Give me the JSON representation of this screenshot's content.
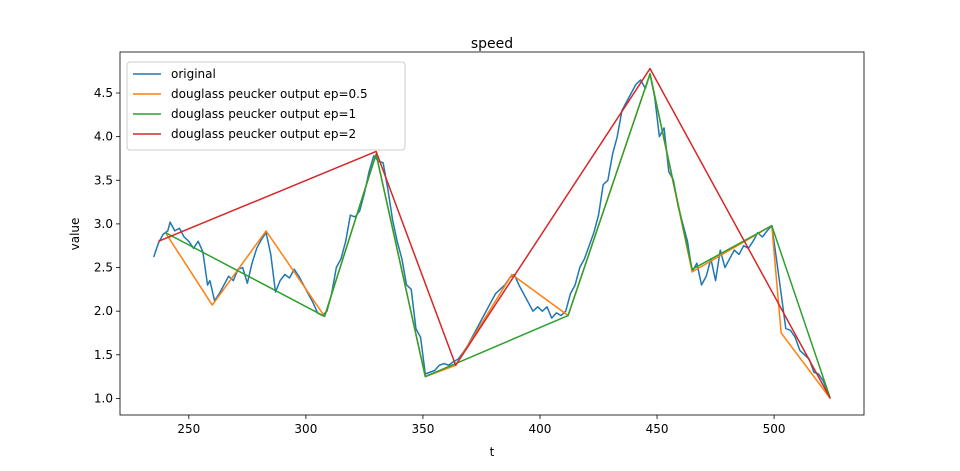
{
  "chart_data": {
    "type": "line",
    "title": "speed",
    "x_label": "t",
    "y_label": "value",
    "xlim": [
      220.6,
      538.4
    ],
    "ylim": [
      0.81,
      4.97
    ],
    "xticks": [
      250,
      300,
      350,
      400,
      450,
      500
    ],
    "yticks": [
      {
        "value": 1.0,
        "label": "1.0"
      },
      1.5,
      {
        "value": 2.0,
        "label": "2.0"
      },
      2.5,
      {
        "value": 3.0,
        "label": "3.0"
      },
      3.5,
      {
        "value": 4.0,
        "label": "4.0"
      },
      4.5
    ],
    "legend": "upper left",
    "series": [
      {
        "name": "original",
        "color": "#1f77b4",
        "x": [
          235,
          237,
          239,
          241,
          242,
          244,
          246,
          248,
          250,
          252,
          254,
          256,
          258,
          259,
          261,
          263,
          265,
          267,
          269,
          271,
          273,
          275,
          277,
          279,
          281,
          283,
          285,
          287,
          289,
          291,
          293,
          295,
          297,
          299,
          301,
          303,
          305,
          307,
          309,
          311,
          313,
          315,
          317,
          319,
          321,
          323,
          325,
          327,
          329,
          331,
          333,
          335,
          337,
          339,
          341,
          343,
          345,
          347,
          349,
          351,
          353,
          355,
          357,
          359,
          361,
          363,
          365,
          367,
          369,
          371,
          373,
          375,
          377,
          379,
          381,
          383,
          385,
          387,
          389,
          391,
          393,
          395,
          397,
          399,
          401,
          403,
          405,
          407,
          409,
          411,
          413,
          415,
          417,
          419,
          421,
          423,
          425,
          427,
          429,
          431,
          433,
          435,
          437,
          439,
          441,
          443,
          445,
          447,
          449,
          451,
          453,
          455,
          457,
          459,
          461,
          463,
          465,
          467,
          469,
          471,
          473,
          475,
          477,
          479,
          481,
          483,
          485,
          487,
          489,
          491,
          493,
          495,
          497,
          499,
          501,
          503,
          505,
          507,
          509,
          511,
          513,
          515,
          517,
          519,
          521,
          524
        ],
        "values": [
          2.62,
          2.78,
          2.88,
          2.92,
          3.02,
          2.92,
          2.95,
          2.85,
          2.8,
          2.72,
          2.8,
          2.68,
          2.3,
          2.35,
          2.12,
          2.2,
          2.3,
          2.4,
          2.35,
          2.48,
          2.5,
          2.32,
          2.55,
          2.72,
          2.82,
          2.9,
          2.65,
          2.22,
          2.35,
          2.42,
          2.38,
          2.48,
          2.4,
          2.3,
          2.2,
          2.1,
          1.98,
          1.95,
          2.0,
          2.2,
          2.5,
          2.6,
          2.8,
          3.1,
          3.08,
          3.15,
          3.35,
          3.6,
          3.78,
          3.72,
          3.7,
          3.4,
          3.05,
          2.8,
          2.6,
          2.3,
          2.25,
          1.8,
          1.7,
          1.28,
          1.3,
          1.32,
          1.38,
          1.4,
          1.38,
          1.42,
          1.45,
          1.52,
          1.6,
          1.7,
          1.8,
          1.9,
          2.0,
          2.1,
          2.2,
          2.25,
          2.3,
          2.38,
          2.42,
          2.3,
          2.2,
          2.1,
          2.0,
          2.05,
          2.0,
          2.05,
          1.92,
          1.98,
          1.95,
          2.0,
          2.2,
          2.3,
          2.5,
          2.6,
          2.75,
          2.9,
          3.1,
          3.45,
          3.5,
          3.8,
          4.0,
          4.3,
          4.4,
          4.5,
          4.6,
          4.65,
          4.55,
          4.72,
          4.45,
          4.0,
          4.1,
          3.6,
          3.5,
          3.2,
          3.0,
          2.8,
          2.45,
          2.55,
          2.3,
          2.4,
          2.6,
          2.35,
          2.7,
          2.5,
          2.6,
          2.7,
          2.65,
          2.75,
          2.72,
          2.8,
          2.9,
          2.85,
          2.92,
          2.98,
          2.6,
          2.2,
          1.8,
          1.78,
          1.7,
          1.55,
          1.5,
          1.45,
          1.3,
          1.28,
          1.2,
          1.0
        ]
      },
      {
        "name": "douglass peucker output ep=0.5",
        "color": "#ff7f0e",
        "x": [
          240,
          260,
          283,
          308,
          330,
          351,
          364,
          388,
          412,
          447,
          465,
          499,
          503,
          524
        ],
        "values": [
          2.9,
          2.07,
          2.92,
          1.94,
          3.8,
          1.25,
          1.38,
          2.42,
          1.95,
          4.72,
          2.45,
          2.98,
          1.75,
          1.0
        ]
      },
      {
        "name": "douglass peucker output ep=1",
        "color": "#2ca02c",
        "x": [
          240,
          308,
          330,
          351,
          412,
          447,
          465,
          499,
          524
        ],
        "values": [
          2.9,
          1.94,
          3.8,
          1.25,
          1.95,
          4.72,
          2.48,
          2.98,
          1.0
        ]
      },
      {
        "name": "douglass peucker output ep=2",
        "color": "#d62728",
        "x": [
          237,
          330,
          364,
          447,
          524
        ],
        "values": [
          2.8,
          3.83,
          1.38,
          4.78,
          1.0
        ]
      }
    ]
  }
}
